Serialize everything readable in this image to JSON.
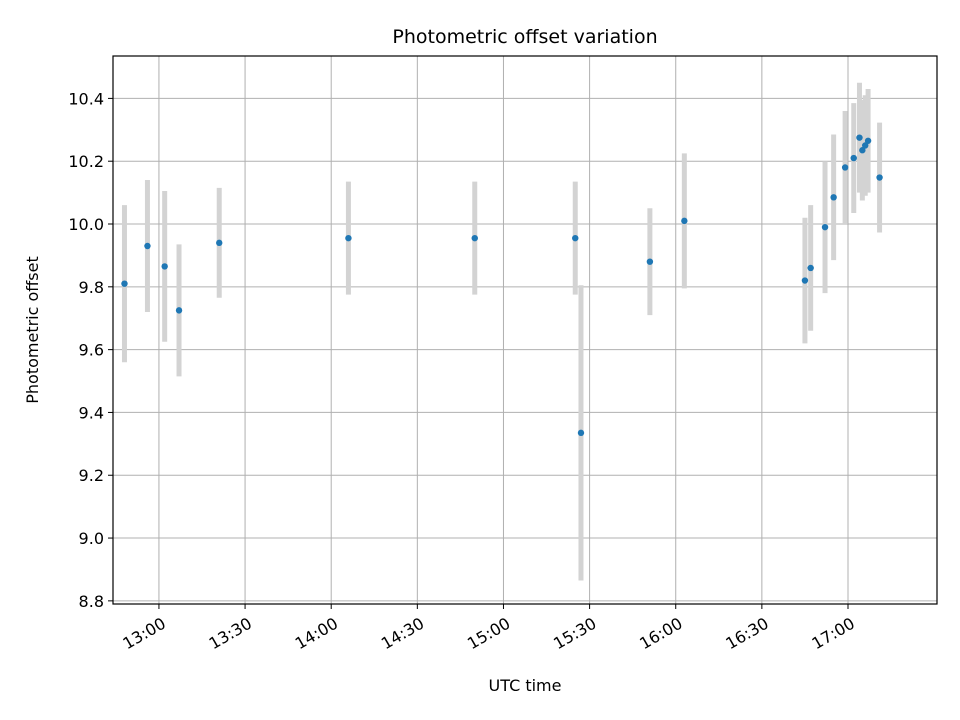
{
  "chart_data": {
    "type": "scatter",
    "title": "Photometric offset variation",
    "xlabel": "UTC time",
    "ylabel": "Photometric offset",
    "grid": true,
    "legend": "none",
    "x_unit": "minutes-of-day UTC",
    "xlim": [
      "12:44",
      "17:31"
    ],
    "ylim": [
      8.79,
      10.535
    ],
    "x_ticks": [
      "13:00",
      "13:30",
      "14:00",
      "14:30",
      "15:00",
      "15:30",
      "16:00",
      "16:30",
      "17:00"
    ],
    "y_ticks": [
      "8.8",
      "9.0",
      "9.2",
      "9.4",
      "9.6",
      "9.8",
      "10.0",
      "10.2",
      "10.4"
    ],
    "marker_color": "#1f77b4",
    "errorbar_color": "#d3d3d3",
    "series": [
      {
        "points": [
          {
            "x": "12:48",
            "y": 9.81,
            "err": 0.25
          },
          {
            "x": "12:56",
            "y": 9.93,
            "err": 0.21
          },
          {
            "x": "13:02",
            "y": 9.865,
            "err": 0.24
          },
          {
            "x": "13:07",
            "y": 9.725,
            "err": 0.21
          },
          {
            "x": "13:21",
            "y": 9.94,
            "err": 0.175
          },
          {
            "x": "14:06",
            "y": 9.955,
            "err": 0.18
          },
          {
            "x": "14:50",
            "y": 9.955,
            "err": 0.18
          },
          {
            "x": "15:25",
            "y": 9.955,
            "err": 0.18
          },
          {
            "x": "15:27",
            "y": 9.335,
            "err": 0.47
          },
          {
            "x": "15:51",
            "y": 9.88,
            "err": 0.17
          },
          {
            "x": "16:03",
            "y": 10.01,
            "err": 0.215
          },
          {
            "x": "16:45",
            "y": 9.82,
            "err": 0.2
          },
          {
            "x": "16:47",
            "y": 9.86,
            "err": 0.2
          },
          {
            "x": "16:52",
            "y": 9.99,
            "err": 0.21
          },
          {
            "x": "16:55",
            "y": 10.085,
            "err": 0.2
          },
          {
            "x": "16:59",
            "y": 10.18,
            "err": 0.18
          },
          {
            "x": "17:02",
            "y": 10.21,
            "err": 0.175
          },
          {
            "x": "17:04",
            "y": 10.275,
            "err": 0.175
          },
          {
            "x": "17:05",
            "y": 10.235,
            "err": 0.16
          },
          {
            "x": "17:06",
            "y": 10.25,
            "err": 0.16
          },
          {
            "x": "17:07",
            "y": 10.265,
            "err": 0.165
          },
          {
            "x": "17:11",
            "y": 10.148,
            "err": 0.175
          }
        ]
      }
    ]
  }
}
